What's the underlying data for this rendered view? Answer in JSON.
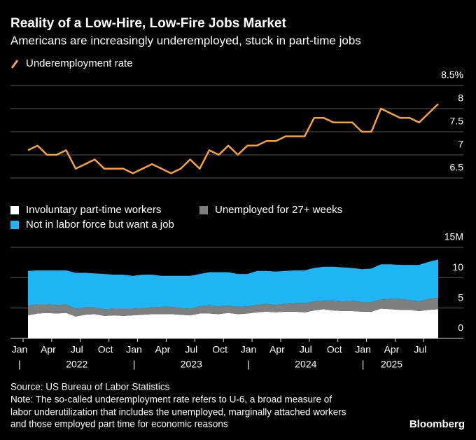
{
  "title": "Reality of a Low-Hire, Low-Fire Jobs Market",
  "subtitle": "Americans are increasingly underemployed, stuck in part-time jobs",
  "chart_data": [
    {
      "type": "line",
      "x": [
        "2022-01",
        "2022-02",
        "2022-03",
        "2022-04",
        "2022-05",
        "2022-06",
        "2022-07",
        "2022-08",
        "2022-09",
        "2022-10",
        "2022-11",
        "2022-12",
        "2023-01",
        "2023-02",
        "2023-03",
        "2023-04",
        "2023-05",
        "2023-06",
        "2023-07",
        "2023-08",
        "2023-09",
        "2023-10",
        "2023-11",
        "2023-12",
        "2024-01",
        "2024-02",
        "2024-03",
        "2024-04",
        "2024-05",
        "2024-06",
        "2024-07",
        "2024-08",
        "2024-09",
        "2024-10",
        "2024-11",
        "2024-12",
        "2025-01",
        "2025-02",
        "2025-03",
        "2025-04",
        "2025-05",
        "2025-06",
        "2025-07",
        "2025-08"
      ],
      "series": [
        {
          "name": "Underemployment rate",
          "color": "#f5a142",
          "values": [
            7.1,
            7.2,
            7.0,
            7.0,
            7.1,
            6.7,
            6.8,
            6.9,
            6.7,
            6.7,
            6.7,
            6.6,
            6.7,
            6.8,
            6.7,
            6.6,
            6.7,
            6.9,
            6.7,
            7.1,
            7.0,
            7.2,
            7.0,
            7.2,
            7.2,
            7.3,
            7.3,
            7.4,
            7.4,
            7.4,
            7.8,
            7.8,
            7.7,
            7.7,
            7.7,
            7.5,
            7.5,
            8.0,
            7.9,
            7.8,
            7.8,
            7.7,
            7.9,
            8.1
          ]
        }
      ],
      "ylim": [
        6.5,
        8.5
      ],
      "yticks": [
        6.5,
        7.0,
        7.5,
        8.0,
        {
          "value": 8.5,
          "label": "8.5%"
        }
      ],
      "grid": true
    },
    {
      "type": "stacked_area",
      "x": [
        "2022-01",
        "2022-02",
        "2022-03",
        "2022-04",
        "2022-05",
        "2022-06",
        "2022-07",
        "2022-08",
        "2022-09",
        "2022-10",
        "2022-11",
        "2022-12",
        "2023-01",
        "2023-02",
        "2023-03",
        "2023-04",
        "2023-05",
        "2023-06",
        "2023-07",
        "2023-08",
        "2023-09",
        "2023-10",
        "2023-11",
        "2023-12",
        "2024-01",
        "2024-02",
        "2024-03",
        "2024-04",
        "2024-05",
        "2024-06",
        "2024-07",
        "2024-08",
        "2024-09",
        "2024-10",
        "2024-11",
        "2024-12",
        "2025-01",
        "2025-02",
        "2025-03",
        "2025-04",
        "2025-05",
        "2025-06",
        "2025-07",
        "2025-08"
      ],
      "series": [
        {
          "name": "Involuntary part-time workers",
          "color": "#ffffff",
          "values": [
            3.8,
            4.1,
            4.2,
            4.1,
            4.2,
            3.6,
            3.9,
            4.0,
            3.7,
            3.8,
            3.7,
            3.8,
            3.9,
            4.0,
            4.0,
            4.0,
            3.9,
            3.8,
            4.1,
            4.1,
            4.0,
            4.2,
            4.0,
            4.1,
            4.3,
            4.4,
            4.3,
            4.4,
            4.4,
            4.3,
            4.6,
            4.8,
            4.6,
            4.5,
            4.5,
            4.4,
            4.4,
            4.9,
            4.8,
            4.7,
            4.7,
            4.5,
            4.7,
            4.8
          ]
        },
        {
          "name": "Unemployed for 27+ weeks",
          "color": "#7f7f7f",
          "values": [
            1.6,
            1.5,
            1.4,
            1.4,
            1.4,
            1.3,
            1.2,
            1.1,
            1.1,
            1.1,
            1.2,
            1.1,
            1.1,
            1.1,
            1.2,
            1.2,
            1.1,
            1.1,
            1.2,
            1.3,
            1.3,
            1.2,
            1.2,
            1.2,
            1.2,
            1.3,
            1.2,
            1.3,
            1.4,
            1.5,
            1.5,
            1.4,
            1.6,
            1.6,
            1.7,
            1.6,
            1.6,
            1.5,
            1.7,
            1.8,
            1.6,
            1.6,
            1.8,
            1.9
          ]
        },
        {
          "name": "Not in labor force but want a job",
          "color": "#1fb5f5",
          "values": [
            5.7,
            5.6,
            5.6,
            5.7,
            5.6,
            5.9,
            5.7,
            5.6,
            5.8,
            5.6,
            5.6,
            5.4,
            5.5,
            5.4,
            5.1,
            5.1,
            5.3,
            5.4,
            5.3,
            5.5,
            5.6,
            5.5,
            5.4,
            5.3,
            5.6,
            5.4,
            5.5,
            5.4,
            5.4,
            5.4,
            5.5,
            5.6,
            5.6,
            5.6,
            5.4,
            5.4,
            5.5,
            5.8,
            5.7,
            5.6,
            5.8,
            6.0,
            6.1,
            6.3
          ]
        }
      ],
      "ylim": [
        0,
        15
      ],
      "yticks": [
        0,
        5,
        10,
        {
          "value": 15,
          "label": "15M"
        }
      ],
      "xticks": [
        {
          "value": "2022-01",
          "label": "Jan"
        },
        {
          "value": "2022-04",
          "label": "Apr"
        },
        {
          "value": "2022-07",
          "label": "Jul"
        },
        {
          "value": "2022-10",
          "label": "Oct"
        },
        {
          "value": "2023-01",
          "label": "Jan"
        },
        {
          "value": "2023-04",
          "label": "Apr"
        },
        {
          "value": "2023-07",
          "label": "Jul"
        },
        {
          "value": "2023-10",
          "label": "Oct"
        },
        {
          "value": "2024-01",
          "label": "Jan"
        },
        {
          "value": "2024-04",
          "label": "Apr"
        },
        {
          "value": "2024-07",
          "label": "Jul"
        },
        {
          "value": "2024-10",
          "label": "Oct"
        },
        {
          "value": "2025-01",
          "label": "Jan"
        },
        {
          "value": "2025-04",
          "label": "Apr"
        },
        {
          "value": "2025-07",
          "label": "Jul"
        }
      ],
      "year_labels": [
        {
          "value": "2022-07",
          "label": "2022"
        },
        {
          "value": "2023-07",
          "label": "2023"
        },
        {
          "value": "2024-07",
          "label": "2024"
        },
        {
          "value": "2025-04",
          "label": "2025"
        }
      ],
      "grid": true
    }
  ],
  "source": "Source: US Bureau of Labor Statistics",
  "note": [
    "Note: The so-called underemployment rate refers to U-6, a broad measure of",
    "labor underutilization that includes the unemployed, marginally attached workers",
    "and those employed part time for economic reasons"
  ],
  "brand": "Bloomberg"
}
